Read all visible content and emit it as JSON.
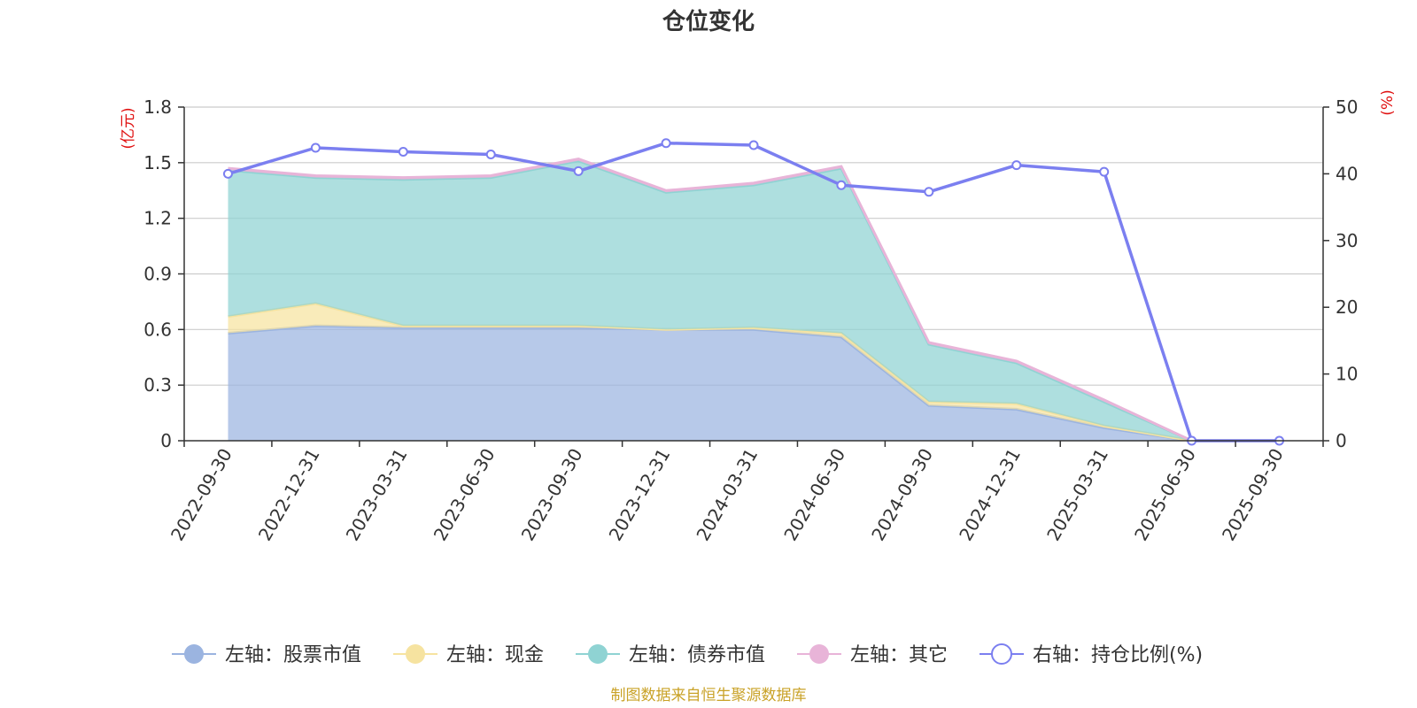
{
  "chart_data": {
    "type": "area",
    "title": "仓位变化",
    "y_left_unit": "(亿元)",
    "y_right_unit": "(%)",
    "y_left_range": [
      0,
      1.8
    ],
    "y_left_ticks": [
      "0",
      "0.3",
      "0.6",
      "0.9",
      "1.2",
      "1.5",
      "1.8"
    ],
    "y_right_range": [
      0,
      50
    ],
    "y_right_ticks": [
      "0",
      "10",
      "20",
      "30",
      "40",
      "50"
    ],
    "grid": true,
    "stacked": true,
    "legend_position": "bottom",
    "categories": [
      "2022-09-30",
      "2022-12-31",
      "2023-03-31",
      "2023-06-30",
      "2023-09-30",
      "2023-12-31",
      "2024-03-31",
      "2024-06-30",
      "2024-09-30",
      "2024-12-31",
      "2025-03-31",
      "2025-06-30",
      "2025-09-30"
    ],
    "series": [
      {
        "name": "左轴：股票市值",
        "axis": "left",
        "color": "#9bb4e0",
        "values": [
          0.58,
          0.62,
          0.61,
          0.61,
          0.61,
          0.6,
          0.6,
          0.56,
          0.19,
          0.17,
          0.07,
          0.0,
          null
        ]
      },
      {
        "name": "左轴：现金",
        "axis": "left",
        "color": "#f6e3a0",
        "values": [
          0.09,
          0.12,
          0.01,
          0.01,
          0.01,
          0.0,
          0.01,
          0.02,
          0.02,
          0.03,
          0.01,
          0.0,
          null
        ]
      },
      {
        "name": "左轴：债券市值",
        "axis": "left",
        "color": "#8fd3d3",
        "values": [
          0.79,
          0.68,
          0.79,
          0.8,
          0.89,
          0.74,
          0.77,
          0.89,
          0.31,
          0.22,
          0.13,
          0.0,
          null
        ]
      },
      {
        "name": "左轴：其它",
        "axis": "left",
        "color": "#e8b4d8",
        "values": [
          0.01,
          0.01,
          0.01,
          0.01,
          0.01,
          0.01,
          0.01,
          0.01,
          0.01,
          0.01,
          0.01,
          0.0,
          null
        ]
      },
      {
        "name": "右轴：持仓比例(%)",
        "axis": "right",
        "color": "#7b7ff0",
        "type": "line",
        "values": [
          40.0,
          43.9,
          43.3,
          42.9,
          40.4,
          44.6,
          44.3,
          38.3,
          37.3,
          41.3,
          40.3,
          0.0,
          0.0
        ]
      }
    ]
  },
  "source_note": "制图数据来自恒生聚源数据库"
}
